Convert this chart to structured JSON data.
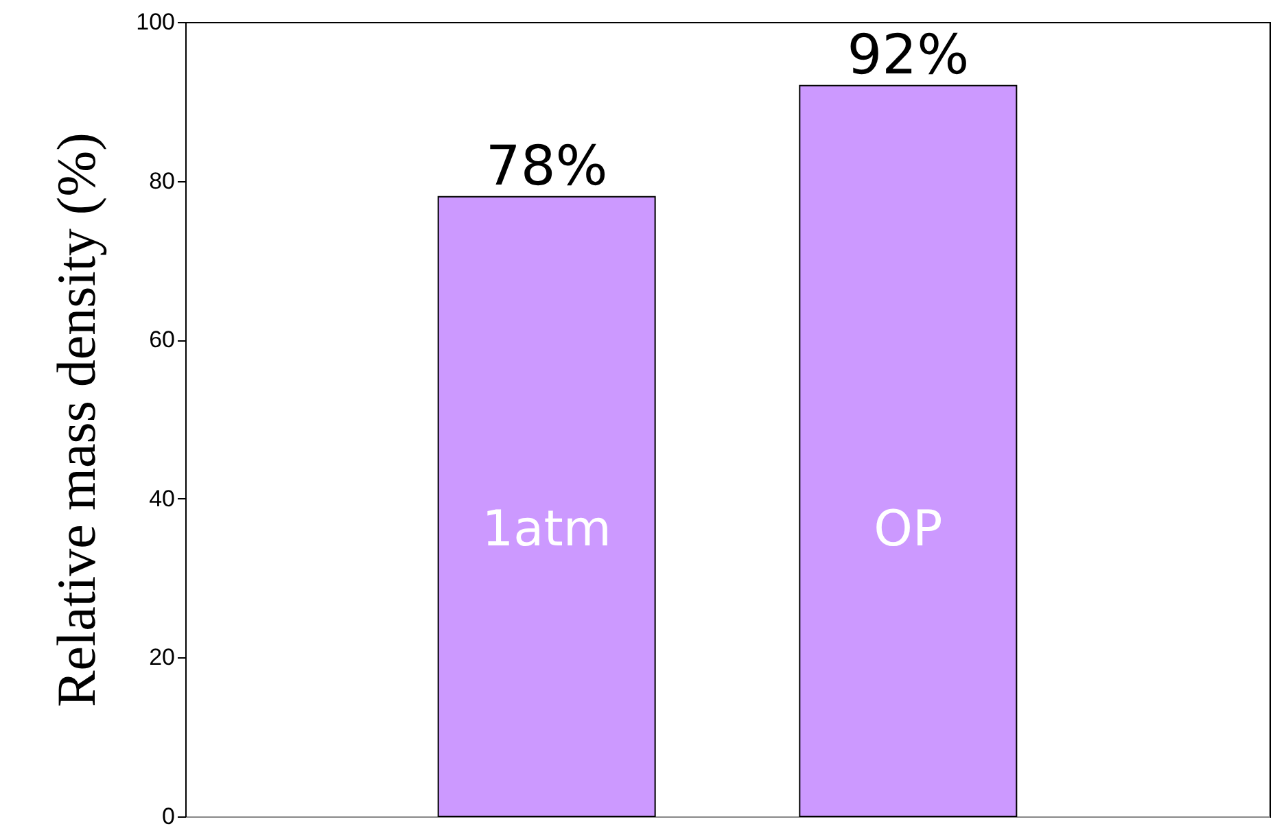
{
  "chart_data": {
    "type": "bar",
    "ylabel": "Relative mass density (%)",
    "categories": [
      "1atm",
      "OP"
    ],
    "values": [
      78,
      92
    ],
    "value_labels": [
      "78%",
      "92%"
    ],
    "color": "#cc99ff",
    "ylim": [
      0,
      100
    ],
    "yticks": [
      0,
      20,
      40,
      60,
      80,
      100
    ],
    "tick_labels": "y"
  }
}
